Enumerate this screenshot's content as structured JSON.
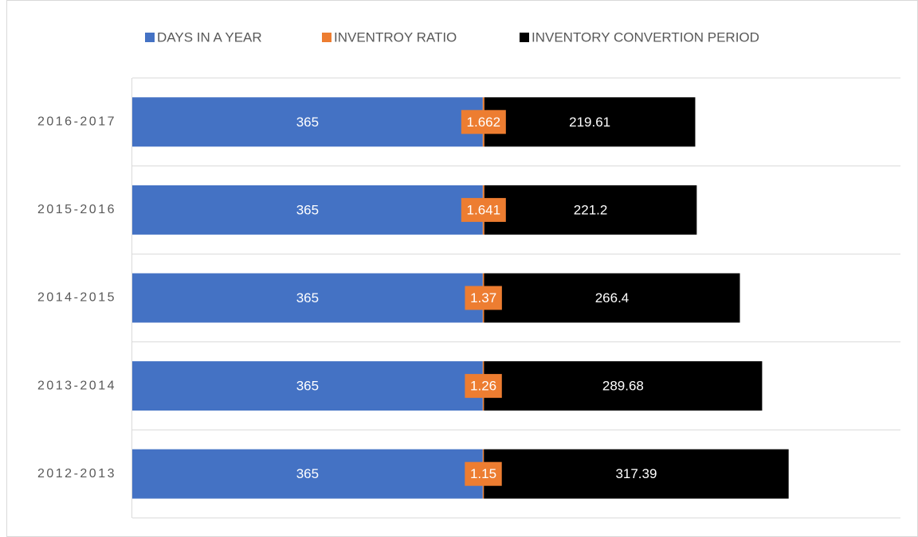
{
  "chart_data": {
    "type": "stacked-bar-horizontal",
    "categories": [
      "2016-2017",
      "2015-2016",
      "2014-2015",
      "2013-2014",
      "2012-2013"
    ],
    "series": [
      {
        "name": "DAYS IN A YEAR",
        "color": "#4472c4",
        "values": [
          365,
          365,
          365,
          365,
          365
        ]
      },
      {
        "name": "INVENTROY RATIO",
        "color": "#ed7d31",
        "values": [
          1.662,
          1.641,
          1.37,
          1.26,
          1.15
        ]
      },
      {
        "name": "INVENTORY CONVERTION PERIOD",
        "color": "#000000",
        "values": [
          219.61,
          221.2,
          266.4,
          289.68,
          317.39
        ]
      }
    ],
    "xlim": [
      0,
      800
    ],
    "legend": "top"
  }
}
